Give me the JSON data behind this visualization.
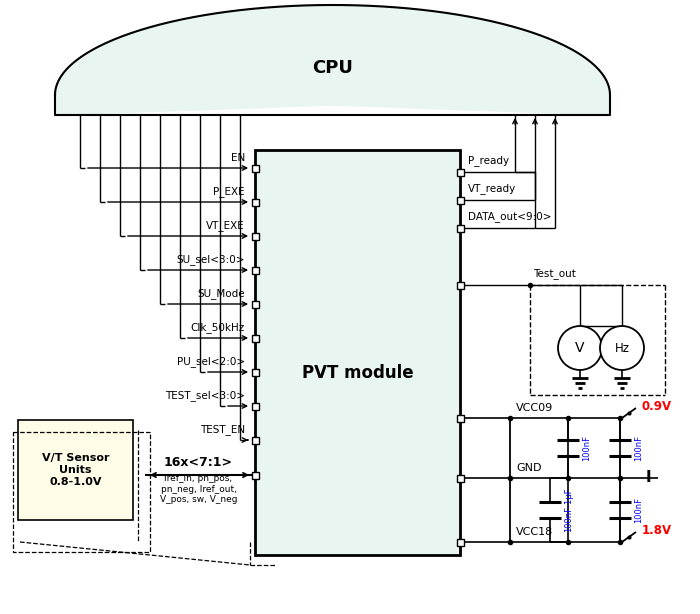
{
  "cpu_color": "#e8f5f0",
  "pvt_color": "#e8f5f0",
  "sensor_color": "#fffde7",
  "pvt_label": "PVT module",
  "sensor_label": "V/T Sensor\nUnits\n0.8-1.0V",
  "bus_label": "16x<7:1>",
  "bus_sublabel": "Iref_in, pn_pos,\npn_neg, Iref_out,\nV_pos, sw, V_neg",
  "input_signals": [
    "EN",
    "P_EXE",
    "VT_EXE",
    "SU_sel<3:0>",
    "SU_Mode",
    "Clk_50kHz",
    "PU_sel<2:0>",
    "TEST_sel<3:0>",
    "TEST_EN"
  ],
  "output_signals": [
    "P_ready",
    "VT_ready",
    "DATA_out<9:0>",
    "Test_out"
  ],
  "power_labels": [
    "VCC09",
    "GND",
    "VCC18"
  ],
  "volt_09": "0.9V",
  "volt_18": "1.8V",
  "cap_labels": [
    "100nF",
    "100nF-1μF",
    "100nF",
    "100nF"
  ]
}
